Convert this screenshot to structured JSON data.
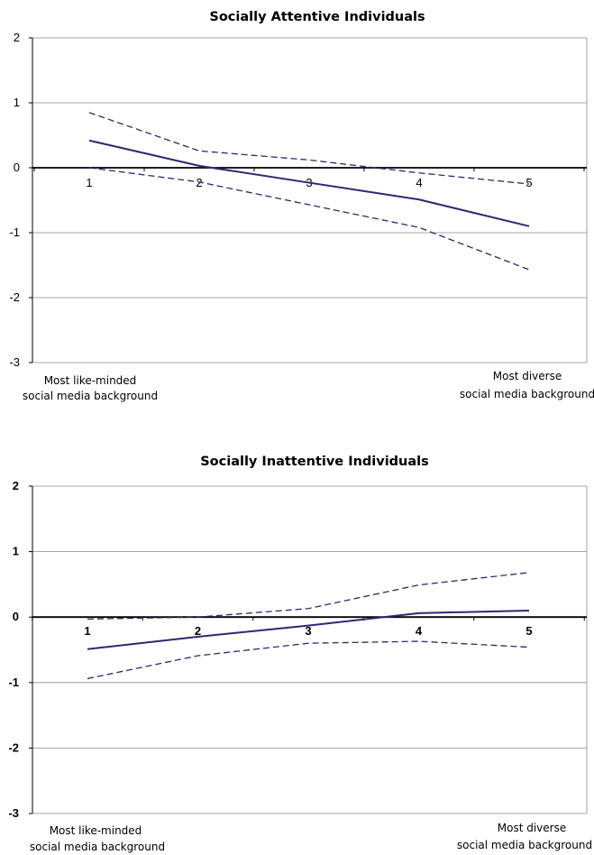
{
  "chart_data": [
    {
      "type": "line",
      "title": "Socially Attentive Individuals",
      "x": [
        1,
        2,
        3,
        4,
        5
      ],
      "ylim": [
        -3,
        2
      ],
      "yticks": [
        "2",
        "1",
        "0",
        "-1",
        "-2",
        "-3"
      ],
      "xticks": [
        "1",
        "2",
        "3",
        "4",
        "5"
      ],
      "grid": true,
      "left_note": [
        "Most like-minded",
        "social media background"
      ],
      "right_note": [
        "Most diverse",
        "social media background"
      ],
      "series": [
        {
          "style": "solid",
          "values": [
            0.42,
            0.03,
            -0.23,
            -0.49,
            -0.9
          ]
        },
        {
          "style": "dashed-upper",
          "values": [
            0.85,
            0.26,
            0.12,
            -0.08,
            -0.25
          ]
        },
        {
          "style": "dashed-lower",
          "values": [
            0.0,
            -0.22,
            -0.57,
            -0.92,
            -1.57
          ]
        }
      ],
      "color": "#2b2a6e"
    },
    {
      "type": "line",
      "title": "Socially Inattentive Individuals",
      "x": [
        1,
        2,
        3,
        4,
        5
      ],
      "ylim": [
        -3,
        2
      ],
      "yticks": [
        "2",
        "1",
        "0",
        "-1",
        "-2",
        "-3"
      ],
      "xticks": [
        "1",
        "2",
        "3",
        "4",
        "5"
      ],
      "grid": true,
      "left_note": [
        "Most like-minded",
        "social media background"
      ],
      "right_note": [
        "Most diverse",
        "social media background"
      ],
      "series": [
        {
          "style": "solid",
          "values": [
            -0.49,
            -0.3,
            -0.13,
            0.06,
            0.1
          ]
        },
        {
          "style": "dashed-upper",
          "values": [
            -0.03,
            0.0,
            0.13,
            0.49,
            0.68
          ]
        },
        {
          "style": "dashed-lower",
          "values": [
            -0.94,
            -0.59,
            -0.4,
            -0.37,
            -0.46
          ]
        }
      ],
      "color": "#2b2a6e"
    }
  ]
}
